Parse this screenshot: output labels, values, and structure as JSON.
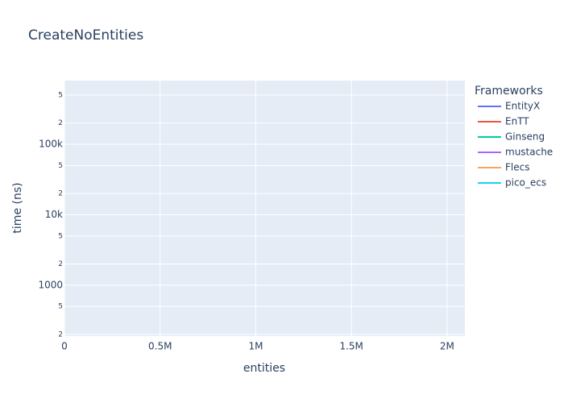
{
  "chart_data": {
    "type": "line",
    "title": "CreateNoEntities",
    "x_label": "entities",
    "y_label": "time (ns)",
    "legend_title": "Frameworks",
    "legend_position": "right",
    "x": [],
    "series": [
      {
        "name": "EntityX",
        "color": "#636efa",
        "values": []
      },
      {
        "name": "EnTT",
        "color": "#EF553B",
        "values": []
      },
      {
        "name": "Ginseng",
        "color": "#00cc96",
        "values": []
      },
      {
        "name": "mustache",
        "color": "#ab63fa",
        "values": []
      },
      {
        "name": "Flecs",
        "color": "#FFA15A",
        "values": []
      },
      {
        "name": "pico_ecs",
        "color": "#19d3f3",
        "values": []
      }
    ],
    "xlim": [
      0,
      2093000
    ],
    "xticks": [
      0,
      {
        "value": 500000,
        "label": "0.5M"
      },
      {
        "value": 1000000,
        "label": "1M"
      },
      {
        "value": 1500000,
        "label": "1.5M"
      },
      {
        "value": 2000000,
        "label": "2M"
      }
    ],
    "ylim": [
      190,
      800000
    ],
    "y_log": true,
    "yticks": [
      {
        "value": 200,
        "label": "2"
      },
      {
        "value": 500,
        "label": "5"
      },
      1000,
      {
        "value": 2000,
        "label": "2"
      },
      {
        "value": 5000,
        "label": "5"
      },
      {
        "value": 10000,
        "label": "10k"
      },
      {
        "value": 20000,
        "label": "2"
      },
      {
        "value": 50000,
        "label": "5"
      },
      {
        "value": 100000,
        "label": "100k"
      },
      {
        "value": 200000,
        "label": "2"
      },
      {
        "value": 500000,
        "label": "5"
      }
    ],
    "grid": true
  }
}
